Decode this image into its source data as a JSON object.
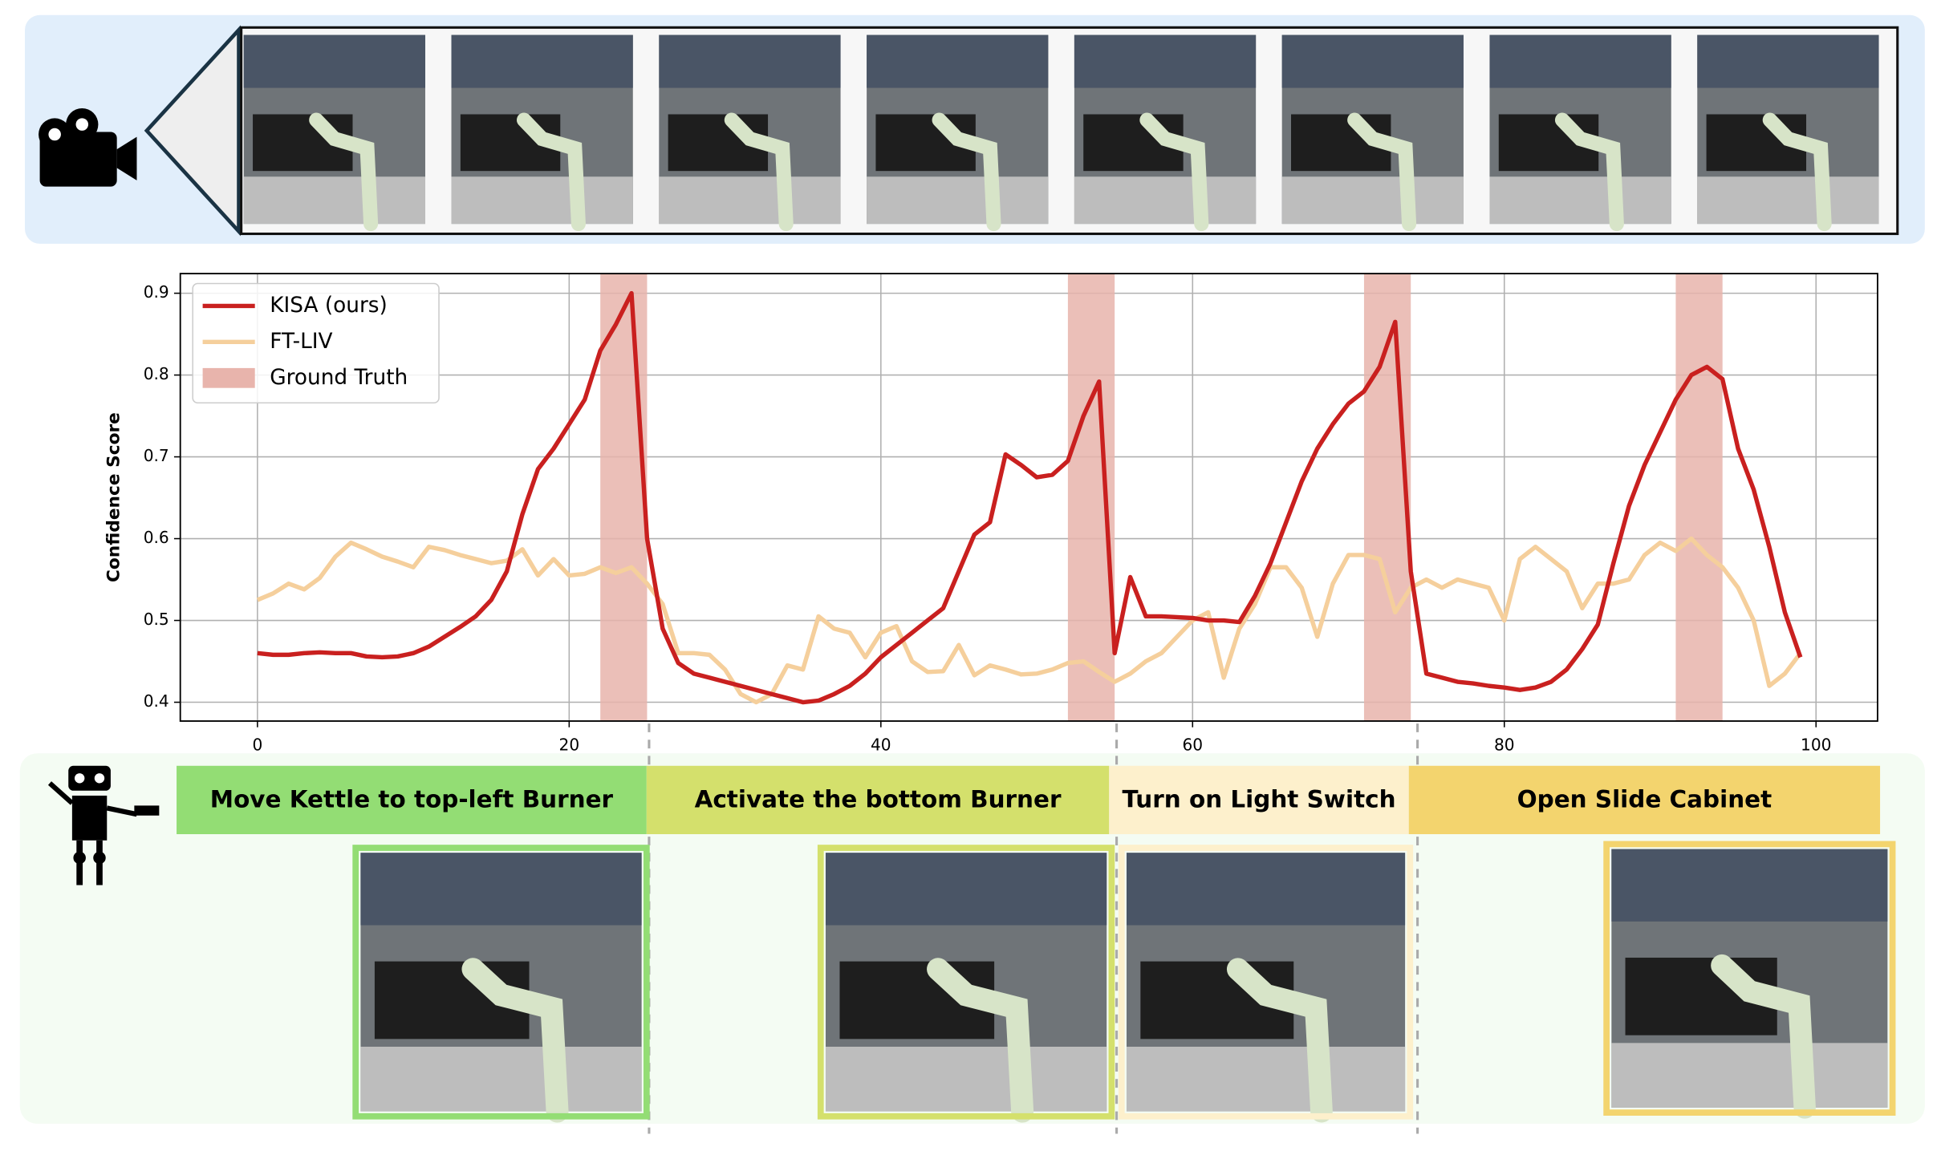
{
  "chart_data": {
    "type": "line",
    "ylabel": "Confidence Score",
    "x": [
      0,
      1,
      2,
      3,
      4,
      5,
      6,
      7,
      8,
      9,
      10,
      11,
      12,
      13,
      14,
      15,
      16,
      17,
      18,
      19,
      20,
      21,
      22,
      23,
      24,
      25,
      26,
      27,
      28,
      29,
      30,
      31,
      32,
      33,
      34,
      35,
      36,
      37,
      38,
      39,
      40,
      41,
      42,
      43,
      44,
      45,
      46,
      47,
      48,
      49,
      50,
      51,
      52,
      53,
      54,
      55,
      56,
      57,
      58,
      59,
      60,
      61,
      62,
      63,
      64,
      65,
      66,
      67,
      68,
      69,
      70,
      71,
      72,
      73,
      74,
      75,
      76,
      77,
      78,
      79,
      80,
      81,
      82,
      83,
      84,
      85,
      86,
      87,
      88,
      89,
      90,
      91,
      92,
      93,
      94,
      95,
      96,
      97,
      98,
      99
    ],
    "series": [
      {
        "name": "KISA (ours)",
        "color": "#c9201f",
        "values": [
          0.46,
          0.458,
          0.458,
          0.46,
          0.461,
          0.46,
          0.46,
          0.456,
          0.455,
          0.456,
          0.46,
          0.468,
          0.48,
          0.492,
          0.505,
          0.525,
          0.56,
          0.63,
          0.685,
          0.71,
          0.74,
          0.77,
          0.83,
          0.862,
          0.9,
          0.6,
          0.49,
          0.448,
          0.435,
          0.43,
          0.425,
          0.42,
          0.415,
          0.41,
          0.405,
          0.4,
          0.402,
          0.41,
          0.42,
          0.435,
          0.455,
          0.47,
          0.485,
          0.5,
          0.515,
          0.56,
          0.605,
          0.62,
          0.703,
          0.69,
          0.675,
          0.678,
          0.695,
          0.75,
          0.792,
          0.46,
          0.553,
          0.505,
          0.505,
          0.504,
          0.503,
          0.5,
          0.5,
          0.498,
          0.53,
          0.57,
          0.62,
          0.67,
          0.71,
          0.74,
          0.765,
          0.78,
          0.81,
          0.865,
          0.56,
          0.435,
          0.43,
          0.425,
          0.423,
          0.42,
          0.418,
          0.415,
          0.418,
          0.425,
          0.44,
          0.465,
          0.495,
          0.57,
          0.64,
          0.69,
          0.73,
          0.77,
          0.8,
          0.81,
          0.795,
          0.71,
          0.66,
          0.59,
          0.51,
          0.455
        ]
      },
      {
        "name": "FT-LIV",
        "color": "#f5cf9c",
        "values": [
          0.525,
          0.533,
          0.545,
          0.538,
          0.552,
          0.578,
          0.595,
          0.587,
          0.578,
          0.572,
          0.565,
          0.59,
          0.586,
          0.58,
          0.575,
          0.57,
          0.573,
          0.587,
          0.555,
          0.575,
          0.555,
          0.557,
          0.565,
          0.558,
          0.565,
          0.545,
          0.52,
          0.46,
          0.46,
          0.458,
          0.44,
          0.41,
          0.4,
          0.41,
          0.445,
          0.44,
          0.505,
          0.49,
          0.485,
          0.455,
          0.485,
          0.493,
          0.45,
          0.437,
          0.438,
          0.47,
          0.433,
          0.445,
          0.44,
          0.434,
          0.435,
          0.44,
          0.448,
          0.45,
          0.437,
          0.425,
          0.435,
          0.45,
          0.46,
          0.48,
          0.5,
          0.51,
          0.43,
          0.49,
          0.52,
          0.565,
          0.565,
          0.54,
          0.48,
          0.545,
          0.58,
          0.58,
          0.575,
          0.51,
          0.54,
          0.55,
          0.54,
          0.55,
          0.545,
          0.54,
          0.5,
          0.575,
          0.59,
          0.575,
          0.56,
          0.515,
          0.545,
          0.545,
          0.55,
          0.58,
          0.595,
          0.585,
          0.6,
          0.58,
          0.565,
          0.54,
          0.5,
          0.42,
          0.435,
          0.46
        ]
      }
    ],
    "ground_truth": {
      "name": "Ground Truth",
      "color": "#e8b4ac",
      "spans": [
        [
          22,
          25
        ],
        [
          52,
          55
        ],
        [
          71,
          74
        ],
        [
          91,
          94
        ]
      ]
    },
    "xlim": [
      -4.95,
      103.95
    ],
    "ylim": [
      0.377,
      0.924
    ],
    "xticks": [
      0,
      20,
      40,
      60,
      80,
      100
    ],
    "yticks": [
      0.4,
      0.5,
      0.6,
      0.7,
      0.8,
      0.9
    ],
    "grid": true,
    "legend": "upper left"
  },
  "tasks": [
    {
      "label": "Move Kettle to top-left Burner",
      "color": "#93dd74"
    },
    {
      "label": "Activate the bottom Burner",
      "color": "#d4e06c"
    },
    {
      "label": "Turn on Light Switch",
      "color": "#fdf0cc"
    },
    {
      "label": "Open Slide Cabinet",
      "color": "#f3d46e"
    }
  ]
}
